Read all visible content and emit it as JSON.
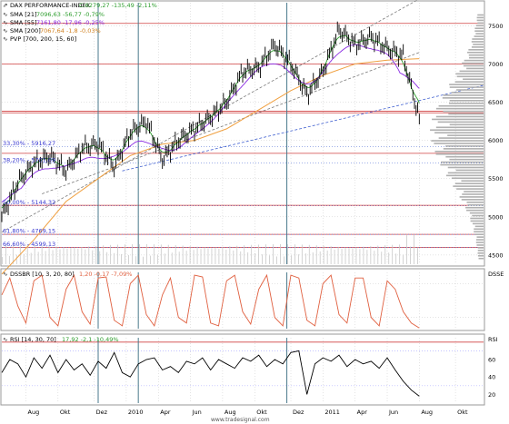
{
  "colors": {
    "background": "#ffffff",
    "grid": "#c8c8c8",
    "price": "#000000",
    "sma21": "#2e9e2e",
    "sma55": "#8a2be2",
    "sma200": "#f0a040",
    "trend_dashed": "#7a7a7a",
    "fib_line": "#ff9a9a",
    "fib_text": "#3a3ad0",
    "blue_dashed": "#4060d0",
    "vertical_marker": "#4a7a8c",
    "stoch": "#e06040",
    "rsi": "#000000",
    "rsi_band": "#b0b0ff",
    "volume": "#c8c8c8",
    "profile": "#b0b0b0"
  },
  "header": {
    "title": "DAX PERFORMANCE-INDEX",
    "title_stats": "C:6279,27 -135,49 -2,11%",
    "sma21": "SMA [21]",
    "sma21_stats": "7096,63 -56,77 -0,79%",
    "sma55": "SMA [55]",
    "sma55_stats": "7161,80 -17,96 -0,25%",
    "sma200": "SMA [200]",
    "sma200_stats": "7067,64 -1,8 -0,03%",
    "pvp": "PVP [700, 200, 15, 60]"
  },
  "stoch_header": {
    "label": "DSSBR [10, 3, 20, 80]",
    "stats": "1,20 -0,17 -7,09%",
    "side_label": "DSSE"
  },
  "rsi_header": {
    "label": "RSI [14, 30, 70]",
    "stats": "17,92 -2,1 -10,49%",
    "side_label": "RSI"
  },
  "watermark": "www.tradesignal.com",
  "chart_data": [
    {
      "type": "line",
      "title": "DAX PERFORMANCE-INDEX",
      "x_labels": [
        "Aug",
        "Okt",
        "Dez",
        "2010",
        "Apr",
        "Jun",
        "Aug",
        "Okt",
        "Dez",
        "2011",
        "Apr",
        "Jun",
        "Aug",
        "Okt"
      ],
      "y_ticks": [
        4500,
        5000,
        5500,
        6000,
        6500,
        7000,
        7500
      ],
      "ylim": [
        4380,
        7800
      ],
      "fib_levels": [
        {
          "label": "33,30% - 5916,27",
          "value": 5916.27
        },
        {
          "label": "38,20% - 5701,09",
          "value": 5701.09
        },
        {
          "label": "50,00% - 5144,32",
          "value": 5144.32
        },
        {
          "label": "61,80% - 4769,15",
          "value": 4769.15
        },
        {
          "label": "66,60% - 4599,13",
          "value": 4599.13
        }
      ],
      "horizontal_levels": [
        7530,
        7000,
        6380,
        6360,
        5830,
        5150,
        4770,
        4600
      ],
      "series": [
        {
          "name": "DAX PERFORMANCE-INDEX",
          "x": [
            0,
            4,
            8,
            12,
            16,
            20,
            24,
            28,
            32,
            36,
            40,
            44,
            48,
            52,
            56,
            60,
            64,
            68,
            72,
            76,
            80,
            84,
            88,
            92,
            96,
            100,
            104
          ],
          "values": [
            5000,
            5450,
            5700,
            5800,
            5600,
            5900,
            5950,
            5650,
            6100,
            6250,
            5750,
            6000,
            6150,
            6300,
            6500,
            6900,
            6950,
            7250,
            7000,
            6600,
            6900,
            7450,
            7250,
            7350,
            7200,
            7100,
            6279
          ]
        },
        {
          "name": "SMA [200]",
          "x": [
            0,
            8,
            16,
            24,
            32,
            40,
            48,
            56,
            64,
            72,
            80,
            88,
            96,
            104
          ],
          "values": [
            4250,
            4700,
            5200,
            5500,
            5800,
            5950,
            6000,
            6150,
            6400,
            6650,
            6850,
            7000,
            7050,
            7068
          ]
        }
      ]
    },
    {
      "type": "line",
      "title": "DSSBR [10, 3, 20, 80]",
      "y_ticks": [],
      "ylim": [
        0,
        100
      ],
      "series": [
        {
          "name": "DSSBR [10, 3, 20, 80]",
          "x": [
            0,
            2,
            4,
            6,
            8,
            10,
            12,
            14,
            16,
            18,
            20,
            22,
            24,
            26,
            28,
            30,
            32,
            34,
            36,
            38,
            40,
            42,
            44,
            46,
            48,
            50,
            52,
            54,
            56,
            58,
            60,
            62,
            64,
            66,
            68,
            70,
            72,
            74,
            76,
            78,
            80,
            82,
            84,
            86,
            88,
            90,
            92,
            94,
            96,
            98,
            100,
            102,
            104
          ],
          "values": [
            60,
            90,
            40,
            10,
            85,
            95,
            20,
            5,
            70,
            95,
            30,
            8,
            90,
            92,
            15,
            5,
            80,
            95,
            25,
            5,
            60,
            90,
            20,
            10,
            95,
            92,
            10,
            5,
            85,
            95,
            30,
            8,
            70,
            95,
            20,
            5,
            95,
            90,
            15,
            5,
            80,
            95,
            25,
            10,
            90,
            90,
            20,
            5,
            85,
            70,
            30,
            10,
            1.2
          ]
        }
      ]
    },
    {
      "type": "line",
      "title": "RSI [14, 30, 70]",
      "y_ticks": [
        20,
        40,
        60
      ],
      "ylim": [
        10,
        85
      ],
      "series": [
        {
          "name": "RSI [14, 30, 70]",
          "x": [
            0,
            2,
            4,
            6,
            8,
            10,
            12,
            14,
            16,
            18,
            20,
            22,
            24,
            26,
            28,
            30,
            32,
            34,
            36,
            38,
            40,
            42,
            44,
            46,
            48,
            50,
            52,
            54,
            56,
            58,
            60,
            62,
            64,
            66,
            68,
            70,
            72,
            74,
            76,
            78,
            80,
            82,
            84,
            86,
            88,
            90,
            92,
            94,
            96,
            98,
            100,
            102,
            104
          ],
          "values": [
            45,
            60,
            55,
            40,
            62,
            50,
            65,
            45,
            60,
            48,
            55,
            42,
            58,
            50,
            68,
            45,
            40,
            55,
            60,
            62,
            48,
            52,
            45,
            58,
            55,
            62,
            48,
            60,
            55,
            50,
            62,
            58,
            65,
            52,
            60,
            55,
            68,
            70,
            20,
            55,
            62,
            58,
            65,
            52,
            60,
            55,
            58,
            50,
            62,
            48,
            35,
            25,
            17.92
          ]
        }
      ]
    }
  ]
}
